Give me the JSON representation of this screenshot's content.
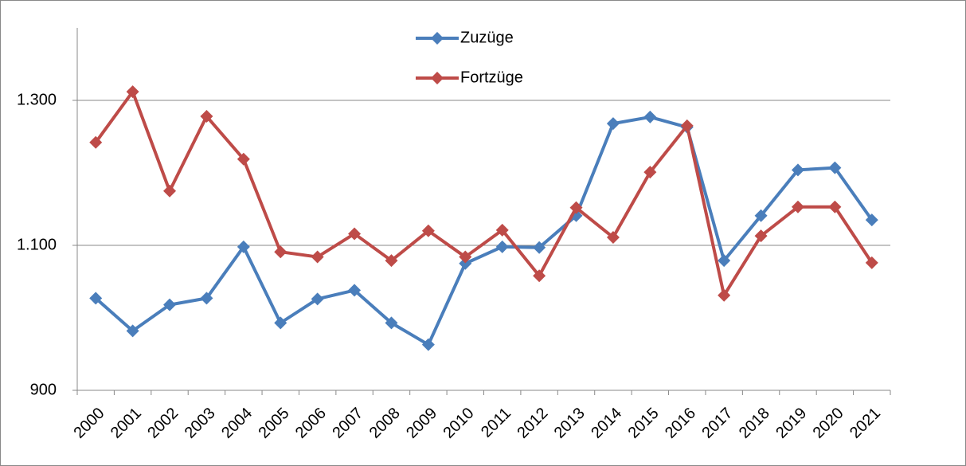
{
  "chart_data": {
    "type": "line",
    "categories": [
      "2000",
      "2001",
      "2002",
      "2003",
      "2004",
      "2005",
      "2006",
      "2007",
      "2008",
      "2009",
      "2010",
      "2011",
      "2012",
      "2013",
      "2014",
      "2015",
      "2016",
      "2017",
      "2018",
      "2019",
      "2020",
      "2021"
    ],
    "series": [
      {
        "name": "Zuzüge",
        "color": "#4a7ebb",
        "values": [
          1027,
          982,
          1018,
          1027,
          1098,
          993,
          1026,
          1038,
          993,
          963,
          1075,
          1098,
          1097,
          1141,
          1268,
          1277,
          1263,
          1079,
          1141,
          1204,
          1207,
          1135
        ]
      },
      {
        "name": "Fortzüge",
        "color": "#be4b48",
        "values": [
          1242,
          1312,
          1175,
          1278,
          1219,
          1091,
          1084,
          1116,
          1079,
          1120,
          1084,
          1121,
          1058,
          1152,
          1111,
          1201,
          1265,
          1031,
          1113,
          1153,
          1153,
          1076
        ]
      }
    ],
    "ylim": [
      900,
      1400
    ],
    "yticks": [
      {
        "value": 900,
        "label": "900"
      },
      {
        "value": 1100,
        "label": "1.100"
      },
      {
        "value": 1300,
        "label": "1.300"
      }
    ],
    "grid": true,
    "legend": "top"
  }
}
